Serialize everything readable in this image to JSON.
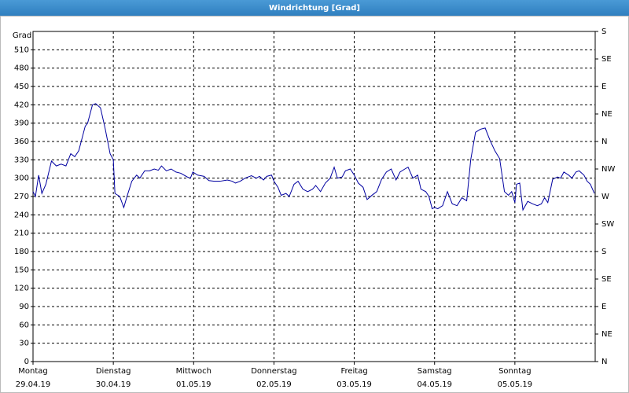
{
  "chart_data": {
    "type": "line",
    "title": "Windrichtung [Grad]",
    "y_label": "Grad",
    "xlim": [
      0,
      7
    ],
    "xticks": [
      {
        "value": 0,
        "label": "Montag",
        "sublabel": "29.04.19"
      },
      {
        "value": 1,
        "label": "Dienstag",
        "sublabel": "30.04.19"
      },
      {
        "value": 2,
        "label": "Mittwoch",
        "sublabel": "01.05.19"
      },
      {
        "value": 3,
        "label": "Donnerstag",
        "sublabel": "02.05.19"
      },
      {
        "value": 4,
        "label": "Freitag",
        "sublabel": "03.05.19"
      },
      {
        "value": 5,
        "label": "Samstag",
        "sublabel": "04.05.19"
      },
      {
        "value": 6,
        "label": "Sonntag",
        "sublabel": "05.05.19"
      }
    ],
    "ylim": [
      0,
      540
    ],
    "yticks": [
      0,
      30,
      60,
      90,
      120,
      150,
      180,
      210,
      240,
      270,
      300,
      330,
      360,
      390,
      420,
      450,
      480,
      510
    ],
    "y2lim": [
      0,
      540
    ],
    "y2ticks": [
      {
        "value": 0,
        "label": "N"
      },
      {
        "value": 45,
        "label": "NE"
      },
      {
        "value": 90,
        "label": "E"
      },
      {
        "value": 135,
        "label": "SE"
      },
      {
        "value": 180,
        "label": "S"
      },
      {
        "value": 225,
        "label": "SW"
      },
      {
        "value": 270,
        "label": "W"
      },
      {
        "value": 315,
        "label": "NW"
      },
      {
        "value": 360,
        "label": "N"
      },
      {
        "value": 405,
        "label": "NE"
      },
      {
        "value": 450,
        "label": "E"
      },
      {
        "value": 495,
        "label": "SE"
      },
      {
        "value": 540,
        "label": "S"
      }
    ],
    "grid": true,
    "series": [
      {
        "color": "#0000a0",
        "x": [
          0,
          0.03,
          0.07,
          0.11,
          0.16,
          0.23,
          0.29,
          0.35,
          0.41,
          0.47,
          0.52,
          0.57,
          0.65,
          0.68,
          0.74,
          0.78,
          0.84,
          0.9,
          0.96,
          1.0,
          1.02,
          1.08,
          1.13,
          1.17,
          1.23,
          1.29,
          1.33,
          1.39,
          1.45,
          1.51,
          1.56,
          1.6,
          1.66,
          1.72,
          1.78,
          1.84,
          1.92,
          1.96,
          1.99,
          2.05,
          2.13,
          2.19,
          2.25,
          2.33,
          2.42,
          2.48,
          2.52,
          2.58,
          2.64,
          2.72,
          2.78,
          2.82,
          2.87,
          2.91,
          2.97,
          3.0,
          3.05,
          3.09,
          3.15,
          3.19,
          3.25,
          3.3,
          3.36,
          3.42,
          3.48,
          3.52,
          3.58,
          3.64,
          3.7,
          3.75,
          3.79,
          3.85,
          3.89,
          3.95,
          4.0,
          4.05,
          4.11,
          4.16,
          4.22,
          4.28,
          4.34,
          4.4,
          4.46,
          4.52,
          4.57,
          4.63,
          4.67,
          4.73,
          4.79,
          4.83,
          4.89,
          4.93,
          4.97,
          5.0,
          5.04,
          5.1,
          5.16,
          5.22,
          5.28,
          5.34,
          5.4,
          5.45,
          5.51,
          5.57,
          5.63,
          5.69,
          5.75,
          5.81,
          5.87,
          5.92,
          5.96,
          6.0,
          6.02,
          6.06,
          6.1,
          6.16,
          6.22,
          6.28,
          6.33,
          6.37,
          6.41,
          6.47,
          6.53,
          6.57,
          6.61,
          6.67,
          6.71,
          6.76,
          6.8,
          6.86,
          6.9,
          6.94,
          6.99
        ],
        "values": [
          278,
          270,
          305,
          275,
          290,
          328,
          320,
          323,
          320,
          340,
          335,
          345,
          385,
          390,
          420,
          422,
          415,
          380,
          340,
          330,
          275,
          270,
          252,
          270,
          295,
          305,
          300,
          312,
          312,
          315,
          313,
          320,
          312,
          315,
          310,
          308,
          302,
          300,
          310,
          305,
          303,
          296,
          295,
          295,
          297,
          295,
          292,
          295,
          300,
          304,
          300,
          303,
          297,
          303,
          305,
          295,
          285,
          272,
          275,
          270,
          290,
          295,
          282,
          278,
          282,
          288,
          278,
          292,
          300,
          318,
          300,
          302,
          312,
          315,
          305,
          292,
          285,
          265,
          272,
          278,
          298,
          310,
          315,
          297,
          310,
          315,
          318,
          300,
          305,
          282,
          278,
          270,
          250,
          252,
          250,
          255,
          278,
          258,
          255,
          268,
          263,
          330,
          375,
          380,
          382,
          362,
          345,
          332,
          278,
          272,
          278,
          260,
          290,
          292,
          248,
          262,
          258,
          255,
          258,
          268,
          260,
          298,
          302,
          300,
          310,
          305,
          300,
          310,
          312,
          305,
          295,
          290,
          275
        ]
      }
    ]
  }
}
